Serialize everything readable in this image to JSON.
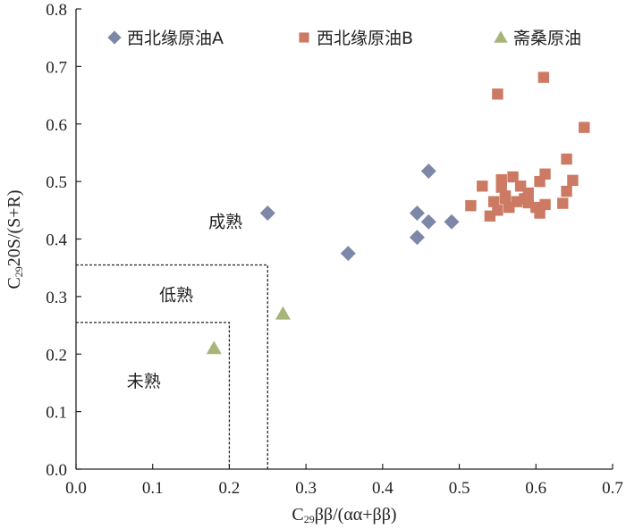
{
  "chart_data": {
    "type": "scatter",
    "xlabel_prefix": "C",
    "xlabel_sub": "29",
    "xlabel_rest": "ββ/(αα+ββ)",
    "ylabel_prefix": "C",
    "ylabel_sub": "29",
    "ylabel_rest": "20S/(S+R)",
    "xlim": [
      0.0,
      0.7
    ],
    "ylim": [
      0.0,
      0.8
    ],
    "x_ticks": [
      "0.0",
      "0.1",
      "0.2",
      "0.3",
      "0.4",
      "0.5",
      "0.6",
      "0.7"
    ],
    "y_ticks": [
      "0.0",
      "0.1",
      "0.2",
      "0.3",
      "0.4",
      "0.5",
      "0.6",
      "0.7",
      "0.8"
    ],
    "grid": false,
    "legend_position": "top",
    "series": [
      {
        "name": "西北缘原油A",
        "marker": "diamond",
        "color": "#7d87a8",
        "points": [
          [
            0.25,
            0.445
          ],
          [
            0.355,
            0.375
          ],
          [
            0.445,
            0.445
          ],
          [
            0.445,
            0.403
          ],
          [
            0.46,
            0.43
          ],
          [
            0.46,
            0.518
          ],
          [
            0.49,
            0.43
          ]
        ]
      },
      {
        "name": "西北缘原油B",
        "marker": "square",
        "color": "#cc7a63",
        "points": [
          [
            0.55,
            0.652
          ],
          [
            0.61,
            0.681
          ],
          [
            0.663,
            0.594
          ],
          [
            0.64,
            0.539
          ],
          [
            0.612,
            0.513
          ],
          [
            0.648,
            0.502
          ],
          [
            0.555,
            0.503
          ],
          [
            0.57,
            0.508
          ],
          [
            0.53,
            0.492
          ],
          [
            0.555,
            0.49
          ],
          [
            0.58,
            0.492
          ],
          [
            0.605,
            0.5
          ],
          [
            0.59,
            0.48
          ],
          [
            0.64,
            0.483
          ],
          [
            0.515,
            0.458
          ],
          [
            0.545,
            0.465
          ],
          [
            0.56,
            0.47
          ],
          [
            0.575,
            0.465
          ],
          [
            0.59,
            0.463
          ],
          [
            0.612,
            0.46
          ],
          [
            0.635,
            0.462
          ],
          [
            0.54,
            0.44
          ],
          [
            0.55,
            0.45
          ],
          [
            0.565,
            0.455
          ],
          [
            0.605,
            0.445
          ],
          [
            0.56,
            0.475
          ],
          [
            0.585,
            0.47
          ],
          [
            0.6,
            0.455
          ]
        ]
      },
      {
        "name": "斋桑原油",
        "marker": "triangle",
        "color": "#a7b47a",
        "points": [
          [
            0.18,
            0.21
          ],
          [
            0.27,
            0.27
          ]
        ]
      }
    ],
    "regions": [
      {
        "label": "未熟",
        "x_max": 0.2,
        "y_max": 0.255
      },
      {
        "label": "低熟",
        "x_max": 0.25,
        "y_max": 0.355
      }
    ],
    "annotations": [
      {
        "text": "成熟",
        "x": 0.195,
        "y": 0.42
      }
    ]
  }
}
